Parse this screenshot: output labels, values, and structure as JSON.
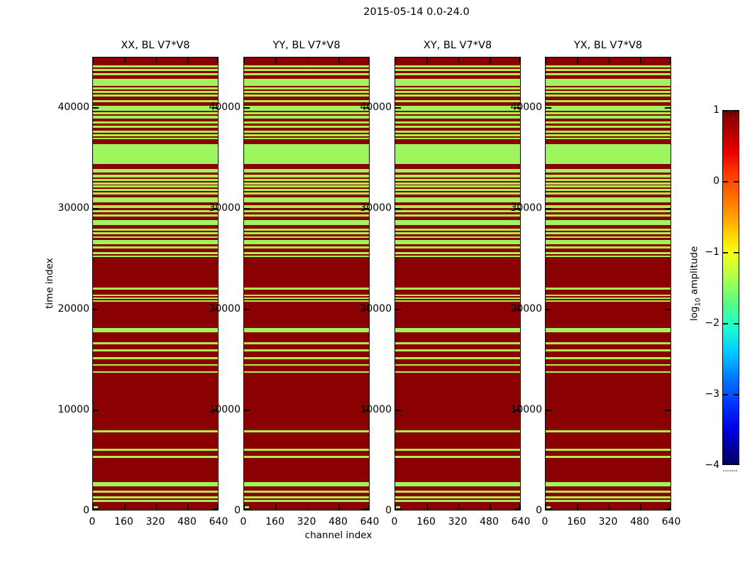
{
  "figure": {
    "suptitle": "2015-05-14 0.0-24.0",
    "background": "#ffffff"
  },
  "chart_data": {
    "type": "heatmap",
    "title": "2015-05-14 0.0-24.0",
    "panels": [
      {
        "pol": "XX",
        "title": "XX, BL V7*V8"
      },
      {
        "pol": "YY",
        "title": "YY, BL V7*V8"
      },
      {
        "pol": "XY",
        "title": "XY, BL V7*V8"
      },
      {
        "pol": "YX",
        "title": "YX, BL V7*V8"
      }
    ],
    "x_axis": {
      "label": "channel index",
      "ticks": [
        0,
        160,
        320,
        480,
        640
      ],
      "range": [
        0,
        640
      ]
    },
    "y_axis": {
      "label": "time index",
      "ticks": [
        0,
        10000,
        20000,
        30000,
        40000
      ],
      "range": [
        0,
        45000
      ]
    },
    "colorbar": {
      "label_pre": "log",
      "label_sub": "10",
      "label_post": " amplitude",
      "ticks": [
        "1",
        "0",
        "−1",
        "−2",
        "−3",
        "−4"
      ],
      "range": [
        -4,
        1
      ],
      "colormap": "jet"
    },
    "colors": {
      "value_high": "#8b0000",
      "band_green": "#9ef55e",
      "line_green": "#abee4e"
    },
    "origin_marker": {
      "description": "small green cell at time 0, channels 0-20",
      "color": "#9ef55e"
    },
    "stripes_note": "horizontal low-amplitude (green) bands over high-amplitude (dark red) background; identical pattern in all four panels; entries are [top_percent, height_percent, type] measured from panel top (time=45000) to bottom (time=0)",
    "stripes": [
      [
        1.72,
        0.5,
        "y"
      ],
      [
        2.5,
        0.5,
        "y"
      ],
      [
        3.44,
        0.5,
        "y"
      ],
      [
        4.7,
        1.6,
        "g"
      ],
      [
        6.57,
        0.5,
        "y"
      ],
      [
        7.35,
        0.5,
        "y"
      ],
      [
        8.13,
        0.5,
        "y"
      ],
      [
        9.39,
        0.5,
        "y"
      ],
      [
        10.64,
        1.1,
        "g"
      ],
      [
        12.05,
        0.5,
        "y"
      ],
      [
        12.83,
        0.65,
        "g"
      ],
      [
        14.08,
        0.5,
        "y"
      ],
      [
        15.02,
        0.5,
        "y"
      ],
      [
        16.12,
        0.45,
        "y"
      ],
      [
        16.9,
        0.45,
        "y"
      ],
      [
        17.68,
        0.45,
        "y"
      ],
      [
        19.2,
        4.3,
        "g"
      ],
      [
        24.7,
        0.8,
        "g"
      ],
      [
        25.98,
        0.5,
        "y"
      ],
      [
        26.92,
        0.45,
        "y"
      ],
      [
        27.7,
        0.35,
        "y"
      ],
      [
        28.33,
        0.35,
        "y"
      ],
      [
        29.11,
        0.35,
        "y"
      ],
      [
        29.89,
        0.45,
        "y"
      ],
      [
        30.99,
        1.1,
        "g"
      ],
      [
        32.71,
        0.5,
        "y"
      ],
      [
        33.8,
        0.45,
        "y"
      ],
      [
        34.74,
        0.45,
        "y"
      ],
      [
        35.99,
        1.1,
        "g"
      ],
      [
        37.87,
        0.45,
        "y"
      ],
      [
        38.65,
        0.45,
        "y"
      ],
      [
        39.59,
        0.3,
        "y"
      ],
      [
        40.37,
        0.95,
        "g"
      ],
      [
        41.78,
        0.45,
        "y"
      ],
      [
        43.03,
        0.45,
        "y"
      ],
      [
        43.82,
        0.3,
        "y"
      ],
      [
        50.86,
        0.45,
        "y"
      ],
      [
        52.43,
        0.3,
        "y"
      ],
      [
        53.05,
        0.3,
        "y"
      ],
      [
        53.68,
        0.3,
        "y"
      ],
      [
        59.78,
        0.95,
        "g"
      ],
      [
        62.91,
        0.45,
        "y"
      ],
      [
        64.48,
        0.45,
        "y"
      ],
      [
        66.2,
        0.45,
        "y"
      ],
      [
        67.76,
        0.45,
        "y"
      ],
      [
        69.33,
        0.45,
        "y"
      ],
      [
        82.48,
        0.45,
        "y"
      ],
      [
        86.54,
        0.45,
        "y"
      ],
      [
        88.11,
        0.45,
        "y"
      ],
      [
        93.9,
        0.95,
        "g"
      ],
      [
        95.77,
        0.45,
        "y"
      ],
      [
        97.03,
        0.45,
        "y"
      ],
      [
        97.81,
        0.45,
        "y"
      ]
    ]
  }
}
